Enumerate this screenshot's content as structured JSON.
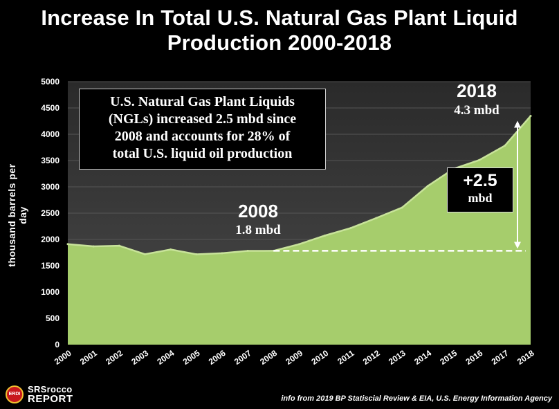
{
  "title_line1": "Increase In Total U.S. Natural Gas Plant Liquid",
  "title_line2": "Production 2000-2018",
  "callout": {
    "line1": "U.S. Natural Gas Plant Liquids",
    "line2": "(NGLs) increased 2.5 mbd since",
    "line3": "2008 and accounts for 28% of",
    "line4": "total U.S. liquid oil production"
  },
  "annotations": {
    "year_2008": "2008",
    "value_2008": "1.8 mbd",
    "year_2018": "2018",
    "value_2018": "4.3 mbd",
    "delta_value": "+2.5",
    "delta_unit": "mbd"
  },
  "logo": {
    "badge": "ERDI",
    "line1": "SRSrocco",
    "line2": "REPORT"
  },
  "source": "info from 2019 BP Statiscial Review & EIA, U.S. Energy Information Agency",
  "colors": {
    "background": "#000000",
    "plot_background": "#3a3a3a",
    "area_fill": "#a6cd6c",
    "area_top": "#c8e39a"
  },
  "chart_data": {
    "type": "area",
    "title": "Increase In Total U.S. Natural Gas Plant Liquid Production 2000-2018",
    "xlabel": "",
    "ylabel": "thousand barrels per day",
    "ylim": [
      0,
      5000
    ],
    "yticks": [
      "0",
      "500",
      "1000",
      "1500",
      "2000",
      "2500",
      "3000",
      "3500",
      "4000",
      "4500",
      "5000"
    ],
    "categories": [
      "2000",
      "2001",
      "2002",
      "2003",
      "2004",
      "2005",
      "2006",
      "2007",
      "2008",
      "2009",
      "2010",
      "2011",
      "2012",
      "2013",
      "2014",
      "2015",
      "2016",
      "2017",
      "2018"
    ],
    "values": [
      1911,
      1868,
      1880,
      1719,
      1809,
      1717,
      1739,
      1783,
      1784,
      1910,
      2074,
      2216,
      2408,
      2606,
      3016,
      3342,
      3509,
      3784,
      4348
    ],
    "baseline_2008": 1784,
    "grid": true,
    "legend": "none"
  }
}
